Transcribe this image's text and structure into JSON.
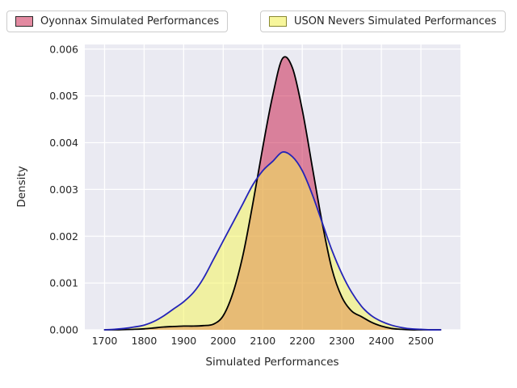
{
  "legend": {
    "entries": [
      {
        "fill": "#e38aa1",
        "edge": "#2b2b2b"
      },
      {
        "fill": "#f7f69b",
        "edge": "#8a8a33"
      }
    ]
  },
  "chart_data": {
    "type": "area",
    "subtype": "kde-density",
    "title": "",
    "xlabel": "Simulated Performances",
    "ylabel": "Density",
    "xlim": [
      1650,
      2600
    ],
    "ylim": [
      0,
      0.0061
    ],
    "grid": true,
    "legend_position": "top",
    "plot_bg": "#eaeaf2",
    "grid_color": "#ffffff",
    "xticks": [
      {
        "value": 1700,
        "label": "1700"
      },
      {
        "value": 1800,
        "label": "1800"
      },
      {
        "value": 1900,
        "label": "1900"
      },
      {
        "value": 2000,
        "label": "2000"
      },
      {
        "value": 2100,
        "label": "2100"
      },
      {
        "value": 2200,
        "label": "2200"
      },
      {
        "value": 2300,
        "label": "2300"
      },
      {
        "value": 2400,
        "label": "2400"
      },
      {
        "value": 2500,
        "label": "2500"
      }
    ],
    "yticks": [
      {
        "value": 0.0,
        "label": "0.000"
      },
      {
        "value": 0.001,
        "label": "0.001"
      },
      {
        "value": 0.002,
        "label": "0.002"
      },
      {
        "value": 0.003,
        "label": "0.003"
      },
      {
        "value": 0.004,
        "label": "0.004"
      },
      {
        "value": 0.005,
        "label": "0.005"
      },
      {
        "value": 0.006,
        "label": "0.006"
      }
    ],
    "x": [
      1700,
      1725,
      1750,
      1775,
      1800,
      1825,
      1850,
      1875,
      1900,
      1925,
      1950,
      1975,
      2000,
      2025,
      2050,
      2075,
      2100,
      2125,
      2150,
      2175,
      2200,
      2225,
      2250,
      2275,
      2300,
      2325,
      2350,
      2375,
      2400,
      2425,
      2450,
      2475,
      2500,
      2525,
      2550
    ],
    "series": [
      {
        "name": "Oyonnax Simulated Performances",
        "fill": "rgba(199,21,67,0.5)",
        "line": "#000000",
        "values": [
          0,
          0,
          5e-06,
          1e-05,
          2e-05,
          4e-05,
          6e-05,
          7e-05,
          8e-05,
          8e-05,
          9e-05,
          0.00012,
          0.0003,
          0.0008,
          0.0016,
          0.0027,
          0.0039,
          0.005,
          0.0058,
          0.0056,
          0.0047,
          0.0035,
          0.0023,
          0.0013,
          0.0007,
          0.0004,
          0.00028,
          0.00016,
          8e-05,
          3e-05,
          1e-05,
          0,
          0,
          0,
          0
        ]
      },
      {
        "name": "USON Nevers Simulated Performances",
        "fill": "rgba(245,245,80,0.5)",
        "line": "#2424b8",
        "values": [
          0,
          1e-05,
          3e-05,
          6e-05,
          0.0001,
          0.00018,
          0.0003,
          0.00045,
          0.0006,
          0.0008,
          0.0011,
          0.0015,
          0.0019,
          0.0023,
          0.0027,
          0.0031,
          0.0034,
          0.0036,
          0.0038,
          0.0037,
          0.0034,
          0.0029,
          0.0023,
          0.0017,
          0.0012,
          0.0008,
          0.0005,
          0.0003,
          0.00018,
          0.0001,
          5e-05,
          2e-05,
          1e-05,
          0,
          0
        ]
      }
    ]
  }
}
